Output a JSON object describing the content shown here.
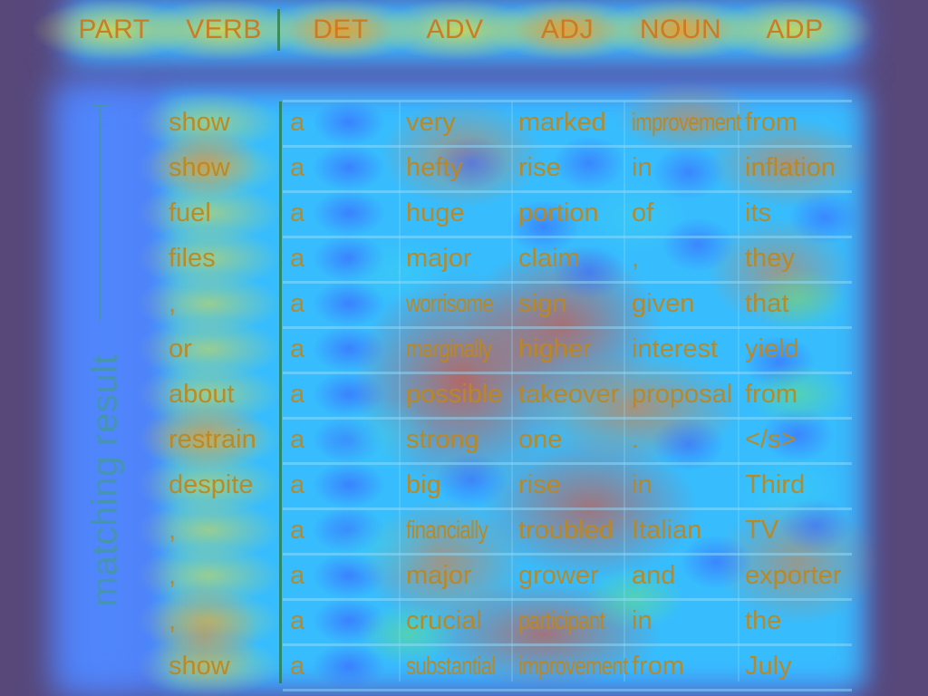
{
  "header": [
    "PART",
    "VERB",
    "DET",
    "ADV",
    "ADJ",
    "NOUN",
    "ADP"
  ],
  "side_label": "matching result",
  "rows": [
    [
      "show",
      "a",
      "very",
      "marked",
      "improvement",
      "from"
    ],
    [
      "show",
      "a",
      "hefty",
      "rise",
      "in",
      "inflation"
    ],
    [
      "fuel",
      "a",
      "huge",
      "portion",
      "of",
      "its"
    ],
    [
      "files",
      "a",
      "major",
      "claim",
      ",",
      "they"
    ],
    [
      ",",
      "a",
      "worrisome",
      "sign",
      "given",
      "that"
    ],
    [
      "or",
      "a",
      "marginally",
      "higher",
      "interest",
      "yield"
    ],
    [
      "about",
      "a",
      "possible",
      "takeover",
      "proposal",
      "from"
    ],
    [
      "restrain",
      "a",
      "strong",
      "one",
      ".",
      "</s>"
    ],
    [
      "despite",
      "a",
      "big",
      "rise",
      "in",
      "Third"
    ],
    [
      ",",
      "a",
      "financially",
      "troubled",
      "Italian",
      "TV"
    ],
    [
      ",",
      "a",
      "major",
      "grower",
      "and",
      "exporter"
    ],
    [
      ",",
      "a",
      "crucial",
      "participant",
      "in",
      "the"
    ],
    [
      "show",
      "a",
      "substantial",
      "improvement",
      "from",
      "July"
    ]
  ],
  "colors": {
    "background": "#58487a",
    "text": "#c8882a",
    "accent": "#46a0b4"
  }
}
